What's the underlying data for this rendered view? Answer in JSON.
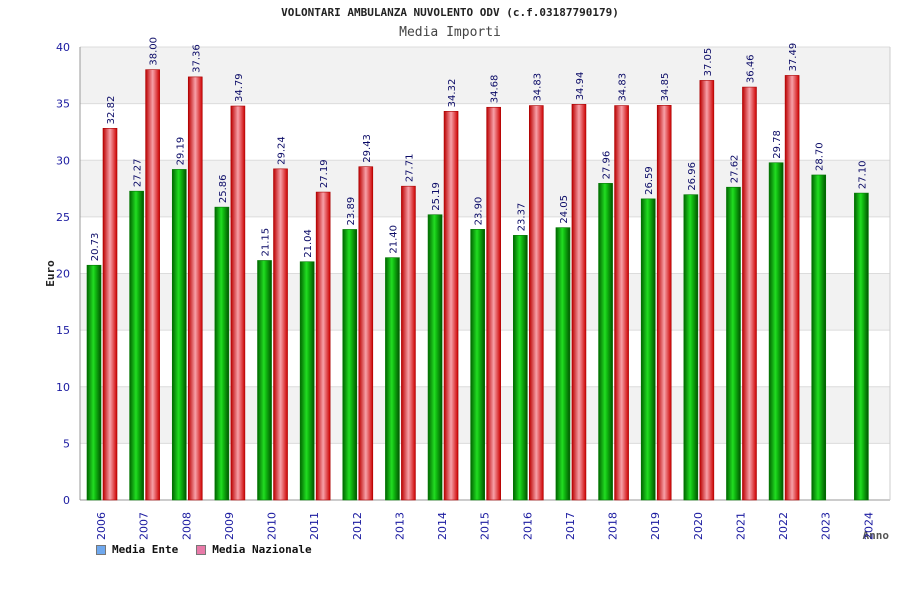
{
  "chart_data": {
    "type": "bar",
    "title": "VOLONTARI AMBULANZA NUVOLENTO ODV (c.f.03187790179)",
    "subtitle": "Media Importi",
    "ylabel": "Euro",
    "xlabel": "Anno",
    "ylim": [
      0,
      40
    ],
    "yticks": [
      0,
      5,
      10,
      15,
      20,
      25,
      30,
      35,
      40
    ],
    "categories": [
      "2006",
      "2007",
      "2008",
      "2009",
      "2010",
      "2011",
      "2012",
      "2013",
      "2014",
      "2015",
      "2016",
      "2017",
      "2018",
      "2019",
      "2020",
      "2021",
      "2022",
      "2023",
      "2024"
    ],
    "series": [
      {
        "name": "Media Ente",
        "color": "#00aa00",
        "legend_color": "#6fa8ee",
        "values": [
          20.73,
          27.27,
          29.19,
          25.86,
          21.15,
          21.04,
          23.89,
          21.4,
          25.19,
          23.9,
          23.37,
          24.05,
          27.96,
          26.59,
          26.96,
          27.62,
          29.78,
          28.7,
          27.1
        ],
        "labels": [
          "20.73",
          "27.27",
          "29.19",
          "25.86",
          "21.15",
          "21.04",
          "23.89",
          "21.40",
          "25.19",
          "23.90",
          "23.37",
          "24.05",
          "27.96",
          "26.59",
          "26.96",
          "27.62",
          "29.78",
          "28.70",
          "27.10"
        ]
      },
      {
        "name": "Media Nazionale",
        "color": "#ee1111",
        "legend_color": "#e87aa8",
        "values": [
          32.82,
          38.0,
          37.36,
          34.79,
          29.24,
          27.19,
          29.43,
          27.71,
          34.32,
          34.68,
          34.83,
          34.94,
          34.83,
          34.85,
          37.05,
          36.46,
          37.49,
          null,
          null
        ],
        "labels": [
          "32.82",
          "38.00",
          "37.36",
          "34.79",
          "29.24",
          "27.19",
          "29.43",
          "27.71",
          "34.32",
          "34.68",
          "34.83",
          "34.94",
          "34.83",
          "34.85",
          "37.05",
          "36.46",
          "37.49",
          "",
          ""
        ]
      }
    ],
    "grid": true,
    "legend_position": "bottom-left"
  }
}
